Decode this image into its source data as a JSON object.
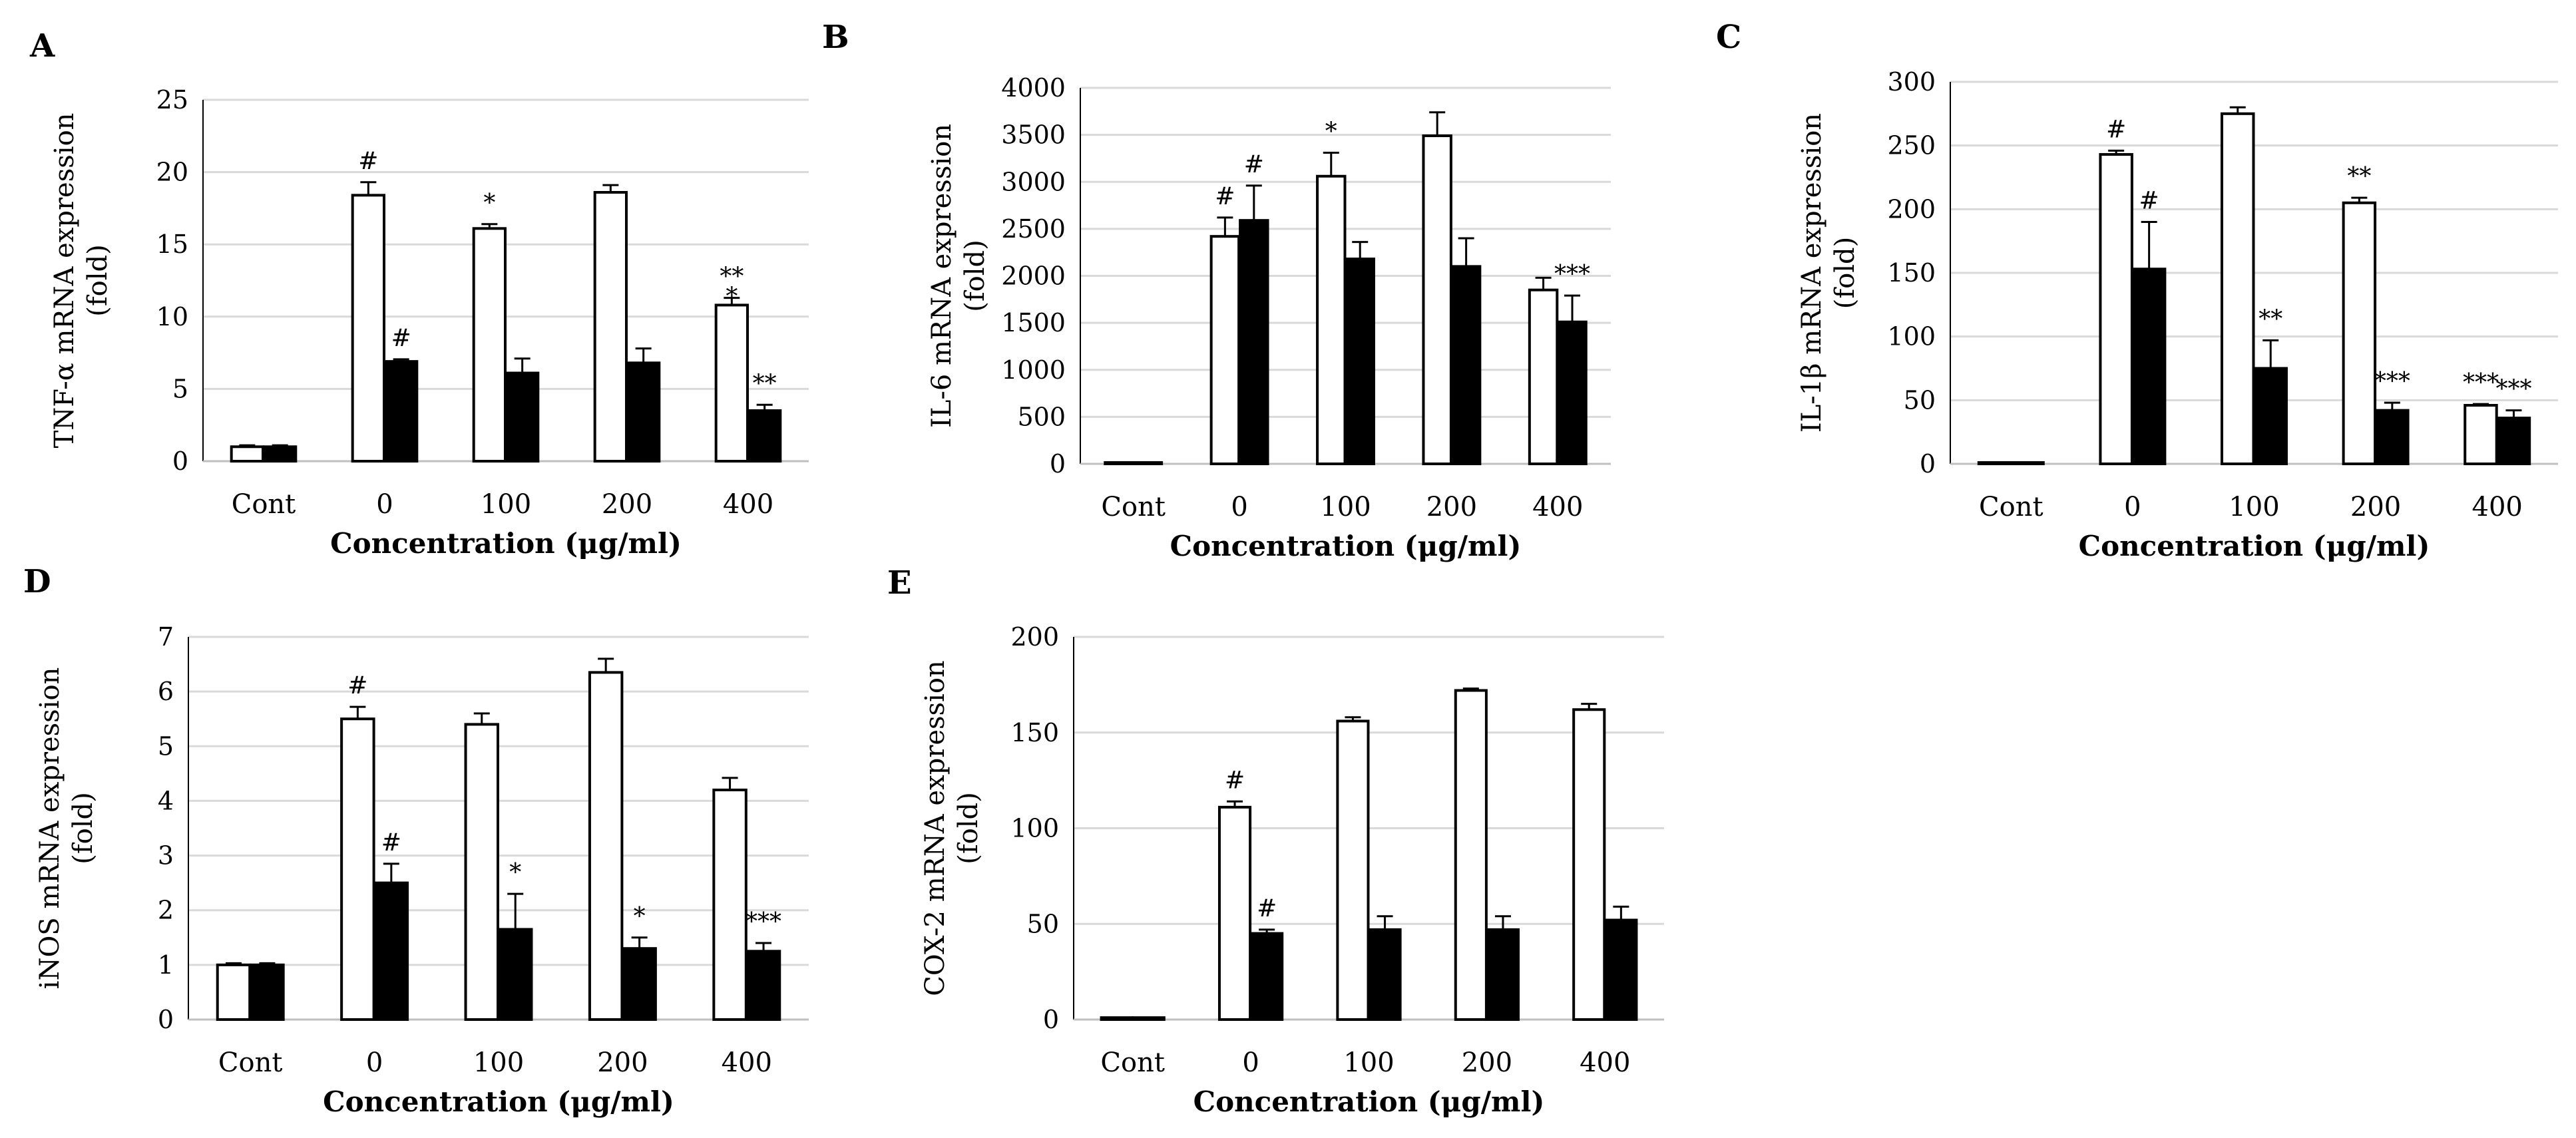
{
  "figure": {
    "panels": [
      "A",
      "B",
      "C",
      "D",
      "E"
    ]
  },
  "colors": {
    "open_bar": "#ffffff",
    "filled_bar": "#000000",
    "grid": "#d9d9d9",
    "axis": "#000000"
  },
  "chart_data": [
    {
      "panel": "A",
      "type": "bar",
      "categories": [
        "Cont",
        "0",
        "100",
        "200",
        "400"
      ],
      "xlabel": "Concentration (μg/ml)",
      "ylabel": [
        "TNF-α mRNA expression",
        "(fold)"
      ],
      "ylim": [
        0,
        25
      ],
      "yticks": [
        0,
        5,
        10,
        15,
        20,
        25
      ],
      "grid": true,
      "series": [
        {
          "name": "open",
          "values": [
            1,
            18.4,
            16.1,
            18.6,
            10.8
          ],
          "errors": [
            0.1,
            0.9,
            0.3,
            0.5,
            0.5
          ],
          "marks": [
            "",
            "#",
            "*",
            "",
            "**\n*"
          ]
        },
        {
          "name": "filled",
          "values": [
            1,
            6.9,
            6.1,
            6.8,
            3.5
          ],
          "errors": [
            0.1,
            0.15,
            1.0,
            1.0,
            0.4
          ],
          "marks": [
            "",
            "#",
            "",
            "",
            "**"
          ]
        }
      ]
    },
    {
      "panel": "B",
      "type": "bar",
      "categories": [
        "Cont",
        "0",
        "100",
        "200",
        "400"
      ],
      "xlabel": "Concentration (μg/ml)",
      "ylabel": [
        "IL-6 mRNA expression",
        "(fold)"
      ],
      "ylim": [
        0,
        4000
      ],
      "yticks": [
        0,
        500,
        1000,
        1500,
        2000,
        2500,
        3000,
        3500,
        4000
      ],
      "grid": true,
      "series": [
        {
          "name": "open",
          "values": [
            1,
            2420,
            3060,
            3490,
            1850
          ],
          "errors": [
            5,
            200,
            250,
            250,
            130
          ],
          "marks": [
            "",
            "#",
            "*",
            "",
            ""
          ]
        },
        {
          "name": "filled",
          "values": [
            1,
            2590,
            2180,
            2100,
            1510
          ],
          "errors": [
            5,
            370,
            180,
            300,
            280
          ],
          "marks": [
            "",
            "#",
            "",
            "",
            "***"
          ]
        }
      ]
    },
    {
      "panel": "C",
      "type": "bar",
      "categories": [
        "Cont",
        "0",
        "100",
        "200",
        "400"
      ],
      "xlabel": "Concentration (μg/ml)",
      "ylabel": [
        "IL-1β  mRNA expression",
        "(fold)"
      ],
      "ylim": [
        0,
        300
      ],
      "yticks": [
        0,
        50,
        100,
        150,
        200,
        250,
        300
      ],
      "grid": true,
      "series": [
        {
          "name": "open",
          "values": [
            1,
            243,
            275,
            205,
            46
          ],
          "errors": [
            0.5,
            3,
            5,
            4,
            1
          ],
          "marks": [
            "",
            "#",
            "",
            "**",
            "***"
          ]
        },
        {
          "name": "filled",
          "values": [
            1,
            153,
            75,
            42,
            36
          ],
          "errors": [
            0.5,
            37,
            22,
            6,
            6
          ],
          "marks": [
            "",
            "#",
            "**",
            "***",
            "***"
          ]
        }
      ]
    },
    {
      "panel": "D",
      "type": "bar",
      "categories": [
        "Cont",
        "0",
        "100",
        "200",
        "400"
      ],
      "xlabel": "Concentration (μg/ml)",
      "ylabel": [
        "iNOS mRNA expression",
        "(fold)"
      ],
      "ylim": [
        0,
        7
      ],
      "yticks": [
        0,
        1,
        2,
        3,
        4,
        5,
        6,
        7
      ],
      "grid": true,
      "series": [
        {
          "name": "open",
          "values": [
            1,
            5.5,
            5.4,
            6.35,
            4.2
          ],
          "errors": [
            0.03,
            0.22,
            0.2,
            0.25,
            0.22
          ],
          "marks": [
            "",
            "#",
            "",
            "",
            ""
          ]
        },
        {
          "name": "filled",
          "values": [
            1,
            2.5,
            1.65,
            1.3,
            1.25
          ],
          "errors": [
            0.03,
            0.35,
            0.65,
            0.2,
            0.15
          ],
          "marks": [
            "",
            "#",
            "*",
            "*",
            "***"
          ]
        }
      ]
    },
    {
      "panel": "E",
      "type": "bar",
      "categories": [
        "Cont",
        "0",
        "100",
        "200",
        "400"
      ],
      "xlabel": "Concentration (μg/ml)",
      "ylabel": [
        "COX-2 mRNA expression",
        "(fold)"
      ],
      "ylim": [
        0,
        200
      ],
      "yticks": [
        0,
        50,
        100,
        150,
        200
      ],
      "grid": true,
      "series": [
        {
          "name": "open",
          "values": [
            1,
            111,
            156,
            172,
            162
          ],
          "errors": [
            0.3,
            3,
            2,
            1,
            3
          ],
          "marks": [
            "",
            "#",
            "",
            "",
            ""
          ]
        },
        {
          "name": "filled",
          "values": [
            1,
            45,
            47,
            47,
            52
          ],
          "errors": [
            0.3,
            2,
            7,
            7,
            7
          ],
          "marks": [
            "",
            "#",
            "",
            "",
            ""
          ]
        }
      ]
    }
  ]
}
